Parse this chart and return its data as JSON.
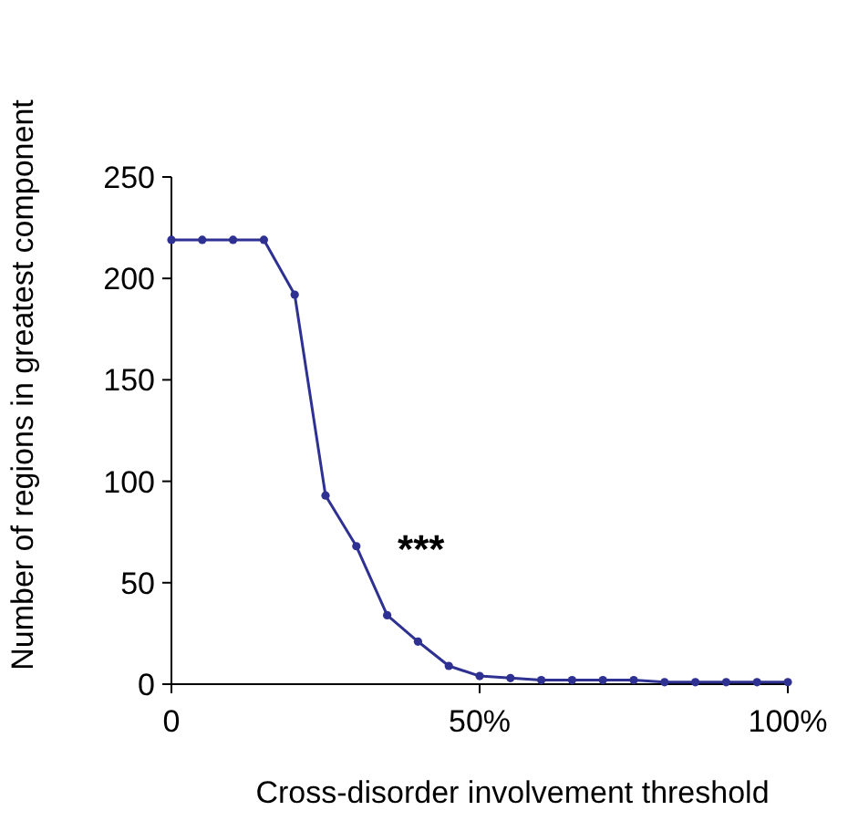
{
  "chart_data": {
    "type": "line",
    "xlabel": "Cross-disorder involvement threshold",
    "ylabel": "Number of regions in greatest component",
    "x": [
      0,
      5,
      10,
      15,
      20,
      25,
      30,
      35,
      40,
      45,
      50,
      55,
      60,
      65,
      70,
      75,
      80,
      85,
      90,
      95,
      100
    ],
    "series": [
      {
        "color": "#2e3192",
        "values": [
          219,
          219,
          219,
          219,
          192,
          93,
          68,
          34,
          21,
          9,
          4,
          3,
          2,
          2,
          2,
          2,
          1,
          1,
          1,
          1,
          1
        ]
      }
    ],
    "xlim": [
      0,
      100
    ],
    "xticks": [
      {
        "value": 0,
        "label": "0"
      },
      {
        "value": 50,
        "label": "50%"
      },
      {
        "value": 100,
        "label": "100%"
      }
    ],
    "ylim": [
      0,
      250
    ],
    "yticks": [
      0,
      50,
      100,
      150,
      200,
      250
    ],
    "annotations": [
      "***"
    ],
    "grid": false,
    "marker": "circle",
    "line_style": "solid"
  }
}
